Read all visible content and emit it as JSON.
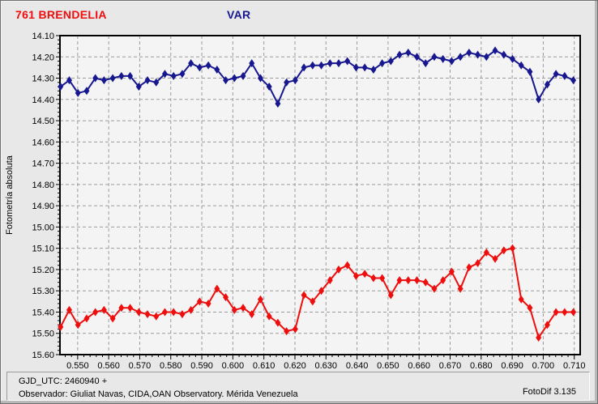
{
  "header": {
    "object_title": "761 BRENDELIA",
    "object_title_color": "#ee0e0e",
    "comparison_title": "VAR",
    "comparison_title_color": "#17178f"
  },
  "footer": {
    "gjd_utc": "GJD_UTC: 2460940 +",
    "observer": "Observador: Giuliat Navas, CIDA,OAN Observatory. Mérida Venezuela",
    "version": "FotoDif 3.135"
  },
  "chart_data": {
    "type": "line",
    "title": "",
    "xlabel": "",
    "ylabel": "Fotometría absoluta",
    "y_axis_note": "magnitude axis, values increase downward",
    "xlim": [
      0.5443,
      0.7119
    ],
    "ylim": [
      14.1,
      15.6
    ],
    "grid": "dashed",
    "grid_color": "#9c9c9c",
    "plot_bg": "#f4f4f4",
    "x_minor_tick_step": 0.002,
    "y_minor_tick_step": 0.02,
    "x_tick_labels": [
      "0.550",
      "0.560",
      "0.570",
      "0.580",
      "0.590",
      "0.600",
      "0.610",
      "0.620",
      "0.630",
      "0.640",
      "0.650",
      "0.660",
      "0.670",
      "0.680",
      "0.690",
      "0.700",
      "0.710"
    ],
    "y_tick_labels": [
      "14.10",
      "14.20",
      "14.30",
      "14.40",
      "14.50",
      "14.60",
      "14.70",
      "14.80",
      "14.90",
      "15.00",
      "15.10",
      "15.20",
      "15.30",
      "15.40",
      "15.50",
      "15.60"
    ],
    "x": [
      0.5445,
      0.5473,
      0.5501,
      0.5529,
      0.5557,
      0.5585,
      0.5613,
      0.5641,
      0.5669,
      0.5697,
      0.5725,
      0.5753,
      0.5781,
      0.5809,
      0.5837,
      0.5865,
      0.5893,
      0.5921,
      0.5949,
      0.5977,
      0.6005,
      0.6033,
      0.6061,
      0.6089,
      0.6117,
      0.6145,
      0.6173,
      0.6201,
      0.6229,
      0.6257,
      0.6285,
      0.6313,
      0.6341,
      0.6369,
      0.6397,
      0.6425,
      0.6453,
      0.6481,
      0.6509,
      0.6537,
      0.6565,
      0.6593,
      0.6621,
      0.6649,
      0.6677,
      0.6705,
      0.6733,
      0.6761,
      0.6789,
      0.6817,
      0.6845,
      0.6873,
      0.6901,
      0.6929,
      0.6957,
      0.6985,
      0.7013,
      0.7041,
      0.7069,
      0.7097
    ],
    "series": [
      {
        "name": "761 BRENDELIA",
        "color": "#ee0e0e",
        "marker": "diamond",
        "values": [
          15.47,
          15.39,
          15.46,
          15.43,
          15.4,
          15.39,
          15.43,
          15.38,
          15.38,
          15.4,
          15.41,
          15.42,
          15.4,
          15.4,
          15.41,
          15.39,
          15.35,
          15.36,
          15.29,
          15.33,
          15.39,
          15.38,
          15.41,
          15.34,
          15.42,
          15.45,
          15.49,
          15.48,
          15.32,
          15.35,
          15.3,
          15.25,
          15.2,
          15.18,
          15.23,
          15.22,
          15.24,
          15.24,
          15.32,
          15.25,
          15.25,
          15.25,
          15.26,
          15.29,
          15.25,
          15.21,
          15.29,
          15.19,
          15.17,
          15.12,
          15.15,
          15.11,
          15.1,
          15.34,
          15.38,
          15.52,
          15.46,
          15.4,
          15.4,
          15.4
        ]
      },
      {
        "name": "VAR",
        "color": "#17178f",
        "marker": "diamond",
        "values": [
          14.34,
          14.31,
          14.37,
          14.36,
          14.3,
          14.31,
          14.3,
          14.29,
          14.29,
          14.34,
          14.31,
          14.32,
          14.28,
          14.29,
          14.28,
          14.23,
          14.25,
          14.24,
          14.26,
          14.31,
          14.3,
          14.29,
          14.23,
          14.3,
          14.34,
          14.42,
          14.32,
          14.31,
          14.25,
          14.24,
          14.24,
          14.23,
          14.23,
          14.22,
          14.25,
          14.25,
          14.26,
          14.23,
          14.22,
          14.19,
          14.18,
          14.2,
          14.23,
          14.2,
          14.21,
          14.22,
          14.2,
          14.18,
          14.19,
          14.2,
          14.17,
          14.19,
          14.21,
          14.24,
          14.27,
          14.4,
          14.33,
          14.28,
          14.29,
          14.31
        ]
      }
    ]
  }
}
